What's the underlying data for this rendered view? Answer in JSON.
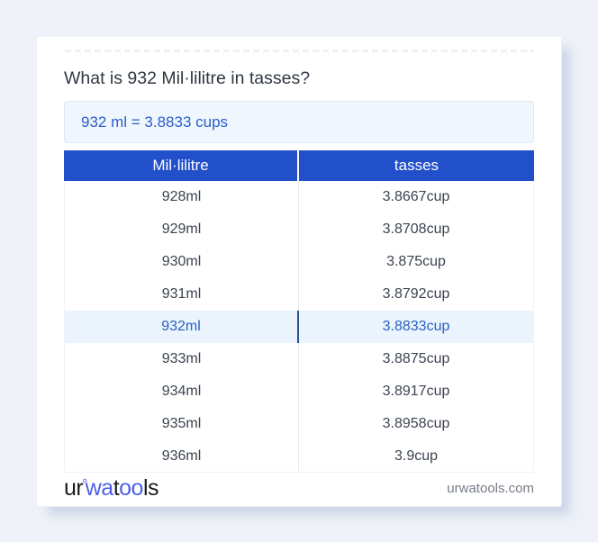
{
  "title": "What is 932 Mil·lilitre in tasses?",
  "answer": "932 ml = 3.8833 cups",
  "table": {
    "columns": [
      "Mil·lilitre",
      "tasses"
    ],
    "rows": [
      {
        "ml": "928ml",
        "cup": "3.8667cup"
      },
      {
        "ml": "929ml",
        "cup": "3.8708cup"
      },
      {
        "ml": "930ml",
        "cup": "3.875cup"
      },
      {
        "ml": "931ml",
        "cup": "3.8792cup"
      },
      {
        "ml": "932ml",
        "cup": "3.8833cup",
        "highlighted": true
      },
      {
        "ml": "933ml",
        "cup": "3.8875cup"
      },
      {
        "ml": "934ml",
        "cup": "3.8917cup"
      },
      {
        "ml": "935ml",
        "cup": "3.8958cup"
      },
      {
        "ml": "936ml",
        "cup": "3.9cup"
      }
    ],
    "highlighted_row": "932ml"
  },
  "footer": {
    "logo": {
      "ur": "ur",
      "ring": "°",
      "wa": "wa",
      "t": "t",
      "oo": "oo",
      "ls": "ls"
    },
    "site": "urwatools.com"
  },
  "colors": {
    "page_bg": "#eef1f7",
    "header_bg": "#2250cb",
    "answer_bg": "#f0f6fd",
    "answer_text": "#2b5ec7",
    "highlight_bg": "#ebf4fd",
    "highlight_text": "#2a61c3",
    "highlight_divider": "#2a5293",
    "logo_blue": "#4d60e6"
  }
}
